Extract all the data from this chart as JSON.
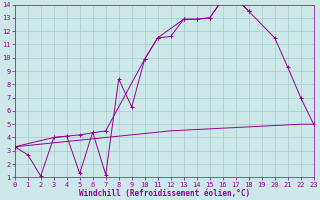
{
  "xlabel": "Windchill (Refroidissement éolien,°C)",
  "bg_color": "#cce8e8",
  "grid_color": "#aacccc",
  "line_color": "#990099",
  "xmin": 0,
  "xmax": 23,
  "ymin": 1,
  "ymax": 14,
  "yticks": [
    1,
    2,
    3,
    4,
    5,
    6,
    7,
    8,
    9,
    10,
    11,
    12,
    13,
    14
  ],
  "xticks": [
    0,
    1,
    2,
    3,
    4,
    5,
    6,
    7,
    8,
    9,
    10,
    11,
    12,
    13,
    14,
    15,
    16,
    17,
    18,
    19,
    20,
    21,
    22,
    23
  ],
  "line1_x": [
    0,
    1,
    2,
    3,
    4,
    5,
    6,
    7,
    8,
    9,
    10,
    11,
    12,
    13,
    14,
    15,
    16,
    17,
    18
  ],
  "line1_y": [
    3.3,
    2.7,
    1.1,
    4.0,
    4.1,
    1.3,
    4.4,
    1.2,
    8.4,
    6.3,
    9.9,
    11.5,
    11.6,
    12.9,
    12.9,
    13.0,
    14.4,
    14.5,
    13.5
  ],
  "line2_x": [
    0,
    2,
    4,
    6,
    7,
    8,
    9,
    10,
    11,
    12,
    13,
    14,
    15,
    16,
    17,
    18,
    19,
    20,
    21,
    22,
    23
  ],
  "line2_y": [
    3.3,
    3.5,
    3.7,
    3.9,
    4.0,
    4.1,
    4.2,
    4.3,
    4.4,
    4.5,
    4.55,
    4.6,
    4.65,
    4.7,
    4.75,
    4.8,
    4.85,
    4.9,
    4.95,
    5.0,
    5.0
  ],
  "line3_x": [
    0,
    3,
    5,
    7,
    10,
    11,
    13,
    14,
    15,
    16,
    17,
    18,
    20,
    21,
    22,
    23
  ],
  "line3_y": [
    3.3,
    4.0,
    4.2,
    4.5,
    9.9,
    11.5,
    12.9,
    12.9,
    13.0,
    14.4,
    14.5,
    13.5,
    11.5,
    9.3,
    7.0,
    5.0
  ]
}
